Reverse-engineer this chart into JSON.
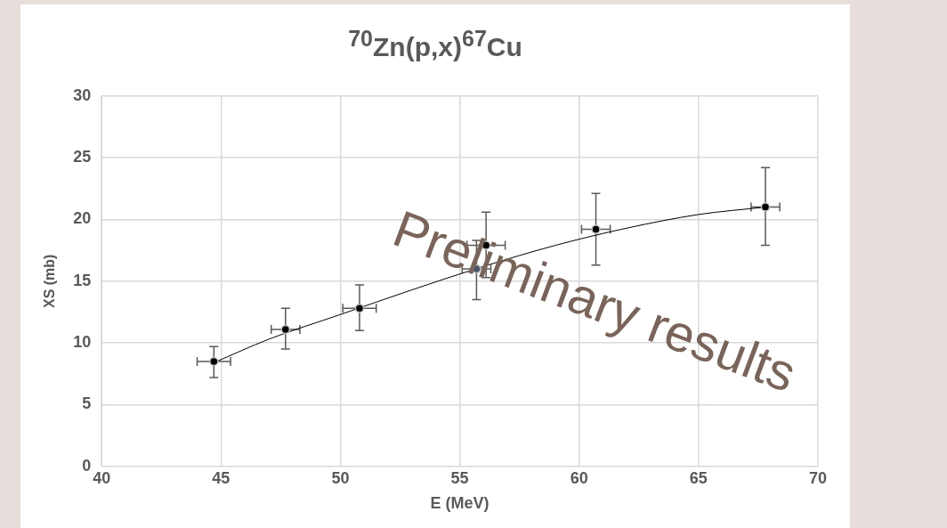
{
  "chart_data": {
    "type": "scatter",
    "title": "$^{70}$Zn(p,x)$^{67}$Cu",
    "xlabel": "E (MeV)",
    "ylabel": "XS (mb)",
    "xlim": [
      40,
      70
    ],
    "xticks": [
      40,
      45,
      50,
      55,
      60,
      65,
      70
    ],
    "ylim": [
      0,
      30
    ],
    "yticks": [
      0,
      5,
      10,
      15,
      20,
      25,
      30
    ],
    "grid": true,
    "legend": false,
    "marker": "circle",
    "series": [
      {
        "type": "scatter",
        "color": "#000000",
        "x": [
          44.7,
          47.7,
          50.8,
          56.1,
          60.7,
          67.8
        ],
        "values": [
          8.5,
          11.1,
          12.8,
          17.9,
          19.2,
          21.0
        ],
        "errors": [
          [
            7.2,
            9.7
          ],
          [
            9.5,
            12.8
          ],
          [
            11.0,
            14.7
          ],
          [
            15.3,
            20.6
          ],
          [
            16.3,
            22.1
          ],
          [
            17.9,
            24.2
          ]
        ],
        "xerrors": [
          0.7,
          0.6,
          0.7,
          0.8,
          0.6,
          0.6
        ]
      },
      {
        "type": "scatter",
        "color": "#44546a",
        "x": [
          55.7
        ],
        "values": [
          16.0
        ],
        "errors": [
          [
            13.5,
            18.3
          ]
        ],
        "xerrors": [
          0.6
        ]
      },
      {
        "type": "line",
        "color": "#000000",
        "marker": "none",
        "x": [
          44.7,
          47,
          50,
          53,
          56,
          59,
          62,
          65,
          67.8
        ],
        "values": [
          8.4,
          10.3,
          12.3,
          14.3,
          16.2,
          17.9,
          19.3,
          20.4,
          21.0
        ]
      }
    ],
    "annotations": [
      "Preliminary results"
    ]
  }
}
